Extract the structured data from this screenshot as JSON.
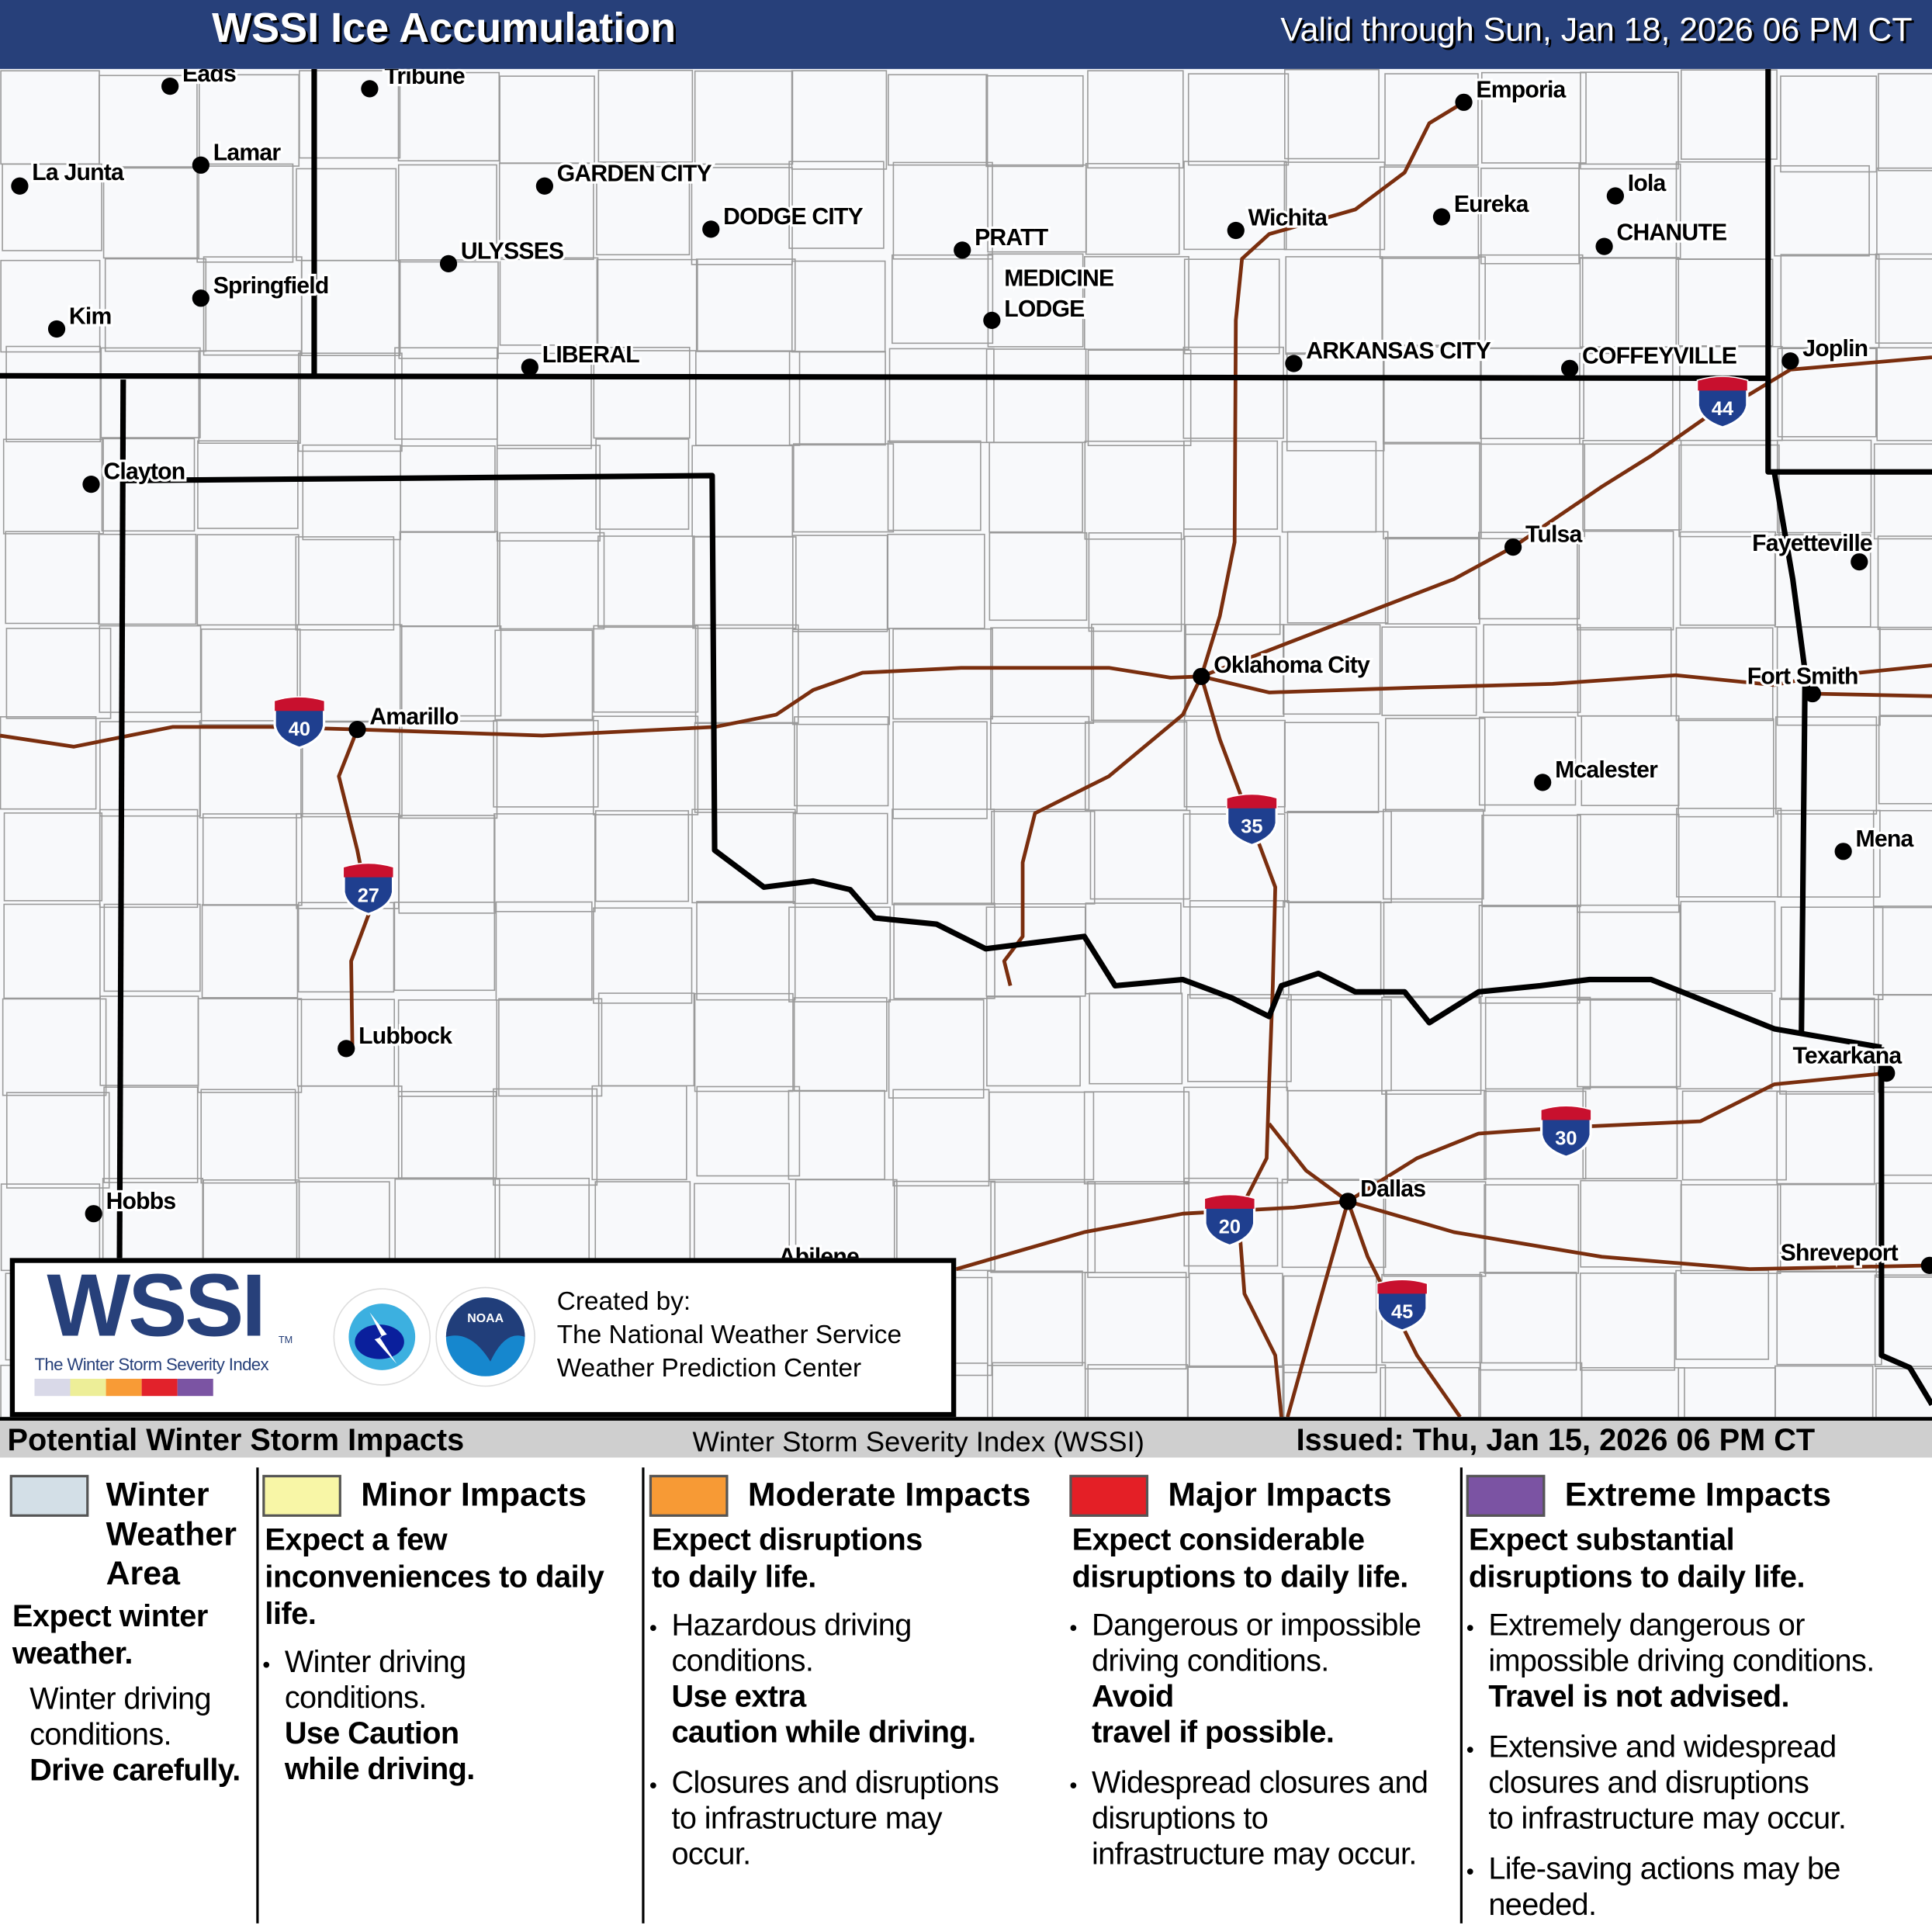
{
  "header": {
    "title": "WSSI Ice Accumulation",
    "valid": "Valid through Sun, Jan 18, 2026 06 PM CT"
  },
  "map": {
    "colors": {
      "background": "#f8f9fb",
      "county_lines": "#9a9a9a",
      "state_lines": "#000000",
      "interstates": "#7a2e0e",
      "header": "#27407a"
    },
    "cities": [
      "Eads",
      "Tribune",
      "La Junta",
      "Lamar",
      "Springfield",
      "Kim",
      "GARDEN CITY",
      "DODGE CITY",
      "ULYSSES",
      "LIBERAL",
      "PRATT",
      "MEDICINE",
      "LODGE",
      "Wichita",
      "Emporia",
      "Eureka",
      "Iola",
      "CHANUTE",
      "ARKANSAS CITY",
      "COFFEYVILLE",
      "Joplin",
      "Clayton",
      "Tulsa",
      "Fayetteville",
      "Oklahoma City",
      "Fort Smith",
      "Amarillo",
      "Mcalester",
      "Mena",
      "Lubbock",
      "Texarkana",
      "Hobbs",
      "Dallas",
      "Abilene",
      "Shreveport"
    ],
    "interstates": [
      "44",
      "40",
      "35",
      "27",
      "30",
      "20",
      "45"
    ]
  },
  "logo": {
    "wssi": "WSSI",
    "tm": "TM",
    "subtitle": "The Winter Storm Severity Index",
    "scale_colors": [
      "#d9d9e8",
      "#edee98",
      "#f89b36",
      "#e2222b",
      "#7b54a3"
    ],
    "created_by": "Created by:",
    "org1": "The National Weather Service",
    "org2": "Weather Prediction Center",
    "nws_logo_text": "NATIONAL WEATHER SERVICE",
    "noaa_logo_text": "NOAA"
  },
  "band": {
    "left": "Potential Winter Storm Impacts",
    "center": "Winter Storm Severity Index (WSSI)",
    "right": "Issued: Thu, Jan 15, 2026 06 PM CT"
  },
  "legend": [
    {
      "title": [
        "Winter",
        "Weather",
        "Area"
      ],
      "color": "#d3dfe7",
      "head": [
        "Expect winter",
        "weather."
      ],
      "body": [
        "Winter driving",
        "conditions."
      ],
      "bold": "Drive carefully."
    },
    {
      "title": [
        "Minor Impacts"
      ],
      "color": "#f8f6a6",
      "head": [
        "Expect a few",
        "inconveniences to daily",
        "life."
      ],
      "bullets": [
        {
          "text": [
            "Winter driving",
            "conditions."
          ],
          "bold": [
            "Use Caution",
            "while driving."
          ]
        }
      ]
    },
    {
      "title": [
        "Moderate Impacts"
      ],
      "color": "#f79a35",
      "head": [
        "Expect disruptions",
        "to daily life."
      ],
      "bullets": [
        {
          "text": [
            "Hazardous driving",
            "conditions."
          ],
          "bold": [
            "Use extra",
            "caution while driving."
          ]
        },
        {
          "text": [
            "Closures and disruptions",
            "to infrastructure may",
            "occur."
          ]
        }
      ]
    },
    {
      "title": [
        "Major Impacts"
      ],
      "color": "#e41f26",
      "head": [
        "Expect considerable",
        "disruptions to daily life."
      ],
      "bullets": [
        {
          "text": [
            "Dangerous or impossible",
            "driving conditions."
          ],
          "bold": [
            "Avoid",
            "travel if possible."
          ]
        },
        {
          "text": [
            "Widespread closures and",
            "disruptions to",
            "infrastructure may occur."
          ]
        }
      ]
    },
    {
      "title": [
        "Extreme Impacts"
      ],
      "color": "#7b53a3",
      "head": [
        "Expect substantial",
        "disruptions to daily life."
      ],
      "bullets": [
        {
          "text": [
            "Extremely dangerous or",
            "impossible driving conditions."
          ],
          "bold": [
            "Travel is not advised."
          ]
        },
        {
          "text": [
            "Extensive and widespread",
            "closures and disruptions",
            "to infrastructure may occur."
          ]
        },
        {
          "text": [
            "Life-saving actions may be",
            "needed."
          ]
        }
      ]
    }
  ]
}
